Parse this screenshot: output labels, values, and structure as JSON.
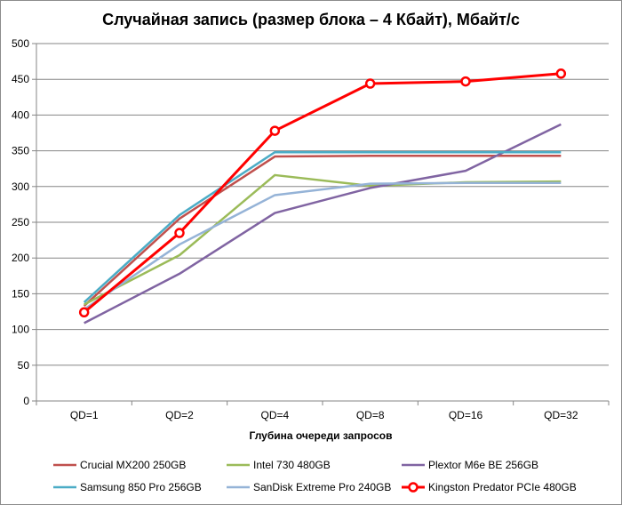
{
  "chart_data": {
    "type": "line",
    "title": "Случайная запись (размер блока – 4 Кбайт), Мбайт/с",
    "xlabel": "Глубина очереди запросов",
    "ylabel": "",
    "categories": [
      "QD=1",
      "QD=2",
      "QD=4",
      "QD=8",
      "QD=16",
      "QD=32"
    ],
    "ylim": [
      0,
      500
    ],
    "yticks": [
      0,
      50,
      100,
      150,
      200,
      250,
      300,
      350,
      400,
      450,
      500
    ],
    "grid": "horizontal",
    "legend_position": "bottom",
    "series": [
      {
        "name": "Crucial MX200 250GB",
        "color": "#c0504d",
        "marker": "none",
        "values": [
          133,
          255,
          342,
          343,
          343,
          343
        ]
      },
      {
        "name": "Intel 730 480GB",
        "color": "#9bbb59",
        "marker": "none",
        "values": [
          135,
          204,
          316,
          301,
          306,
          307
        ]
      },
      {
        "name": "Plextor M6e BE 256GB",
        "color": "#8064a2",
        "marker": "none",
        "values": [
          109,
          178,
          263,
          298,
          322,
          387
        ]
      },
      {
        "name": "Samsung 850 Pro 256GB",
        "color": "#4bacc6",
        "marker": "none",
        "values": [
          138,
          260,
          348,
          348,
          348,
          348
        ]
      },
      {
        "name": "SanDisk Extreme Pro 240GB",
        "color": "#95b3d7",
        "marker": "none",
        "values": [
          128,
          219,
          288,
          304,
          305,
          305
        ]
      },
      {
        "name": "Kingston Predator PCIe 480GB",
        "color": "#ff0000",
        "marker": "circle",
        "values": [
          124,
          235,
          378,
          444,
          447,
          458
        ]
      }
    ]
  }
}
